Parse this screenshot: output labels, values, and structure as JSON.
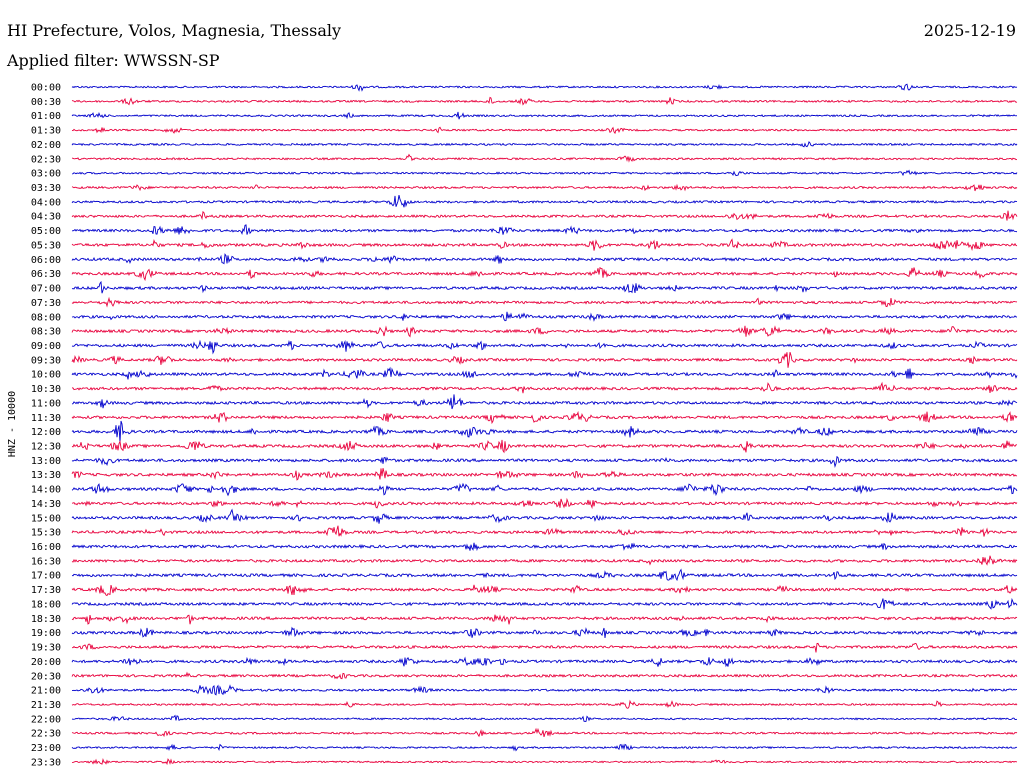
{
  "header": {
    "station": "HI Prefecture, Volos, Magnesia, Thessaly",
    "filter": "Applied filter: WWSSN-SP",
    "date": "2025-12-19"
  },
  "chart_data": {
    "type": "line",
    "ylabel": "HNZ - 10000",
    "rows": [
      "00:00",
      "00:30",
      "01:00",
      "01:30",
      "02:00",
      "02:30",
      "03:00",
      "03:30",
      "04:00",
      "04:30",
      "05:00",
      "05:30",
      "06:00",
      "06:30",
      "07:00",
      "07:30",
      "08:00",
      "08:30",
      "09:00",
      "09:30",
      "10:00",
      "10:30",
      "11:00",
      "11:30",
      "12:00",
      "12:30",
      "13:00",
      "13:30",
      "14:00",
      "14:30",
      "15:00",
      "15:30",
      "16:00",
      "16:30",
      "17:00",
      "17:30",
      "18:00",
      "18:30",
      "19:00",
      "19:30",
      "20:00",
      "20:30",
      "21:00",
      "21:30",
      "22:00",
      "22:30",
      "23:00",
      "23:30"
    ],
    "amplitude": [
      0.3,
      0.35,
      0.3,
      0.3,
      0.35,
      0.35,
      0.3,
      0.45,
      0.5,
      0.6,
      0.7,
      0.8,
      0.8,
      0.75,
      0.8,
      0.7,
      0.75,
      0.8,
      0.8,
      0.75,
      0.8,
      0.75,
      0.8,
      0.8,
      0.85,
      0.85,
      0.85,
      0.85,
      0.8,
      0.75,
      0.8,
      0.75,
      0.8,
      0.75,
      0.85,
      0.75,
      0.8,
      0.8,
      0.8,
      0.75,
      0.75,
      0.65,
      0.5,
      0.3,
      0.25,
      0.35,
      0.25,
      0.2
    ],
    "colors": [
      "#0000cc",
      "#e8003c"
    ]
  }
}
